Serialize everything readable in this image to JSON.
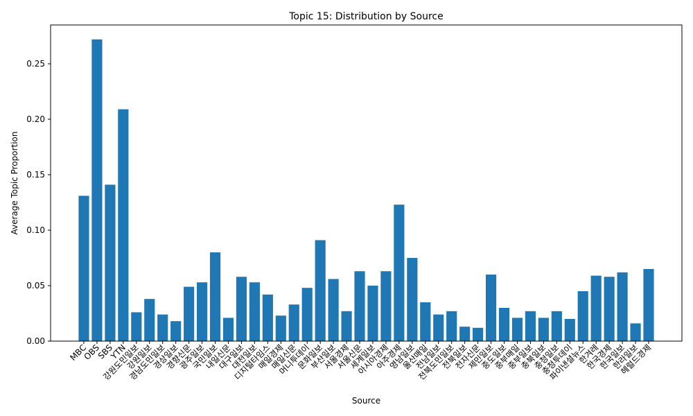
{
  "chart_data": {
    "type": "bar",
    "title": "Topic 15: Distribution by Source",
    "xlabel": "Source",
    "ylabel": "Average Topic Proportion",
    "ylim": [
      0,
      0.285
    ],
    "yticks": [
      "0.00",
      "0.05",
      "0.10",
      "0.15",
      "0.20",
      "0.25"
    ],
    "ytick_values": [
      0,
      0.05,
      0.1,
      0.15,
      0.2,
      0.25
    ],
    "grid": false,
    "bar_color": "#1f77b4",
    "categories": [
      "MBC",
      "OBS",
      "SBS",
      "YTN",
      "강원도민일보",
      "강원일보",
      "경남도민일보",
      "경상일보",
      "경향신문",
      "광주일보",
      "국민일보",
      "내일신문",
      "대구일보",
      "대전일보",
      "디지털타임스",
      "매일경제",
      "매일신문",
      "머니투데이",
      "문화일보",
      "부산일보",
      "서울경제",
      "서울신문",
      "세계일보",
      "아시아경제",
      "아주경제",
      "영남일보",
      "울산매일",
      "전남일보",
      "전북도민일보",
      "전북일보",
      "전자신문",
      "제민일보",
      "중도일보",
      "중부매일",
      "중부일보",
      "충북일보",
      "충청일보",
      "충청투데이",
      "파이낸셜뉴스",
      "한겨레",
      "한국경제",
      "한국일보",
      "한라일보",
      "헤럴드경제"
    ],
    "values": [
      0.131,
      0.272,
      0.141,
      0.209,
      0.026,
      0.038,
      0.024,
      0.018,
      0.049,
      0.053,
      0.08,
      0.021,
      0.058,
      0.053,
      0.042,
      0.023,
      0.033,
      0.048,
      0.091,
      0.056,
      0.027,
      0.063,
      0.05,
      0.063,
      0.123,
      0.075,
      0.035,
      0.024,
      0.027,
      0.013,
      0.012,
      0.06,
      0.03,
      0.021,
      0.027,
      0.021,
      0.027,
      0.02,
      0.045,
      0.059,
      0.058,
      0.062,
      0.016,
      0.065
    ]
  }
}
